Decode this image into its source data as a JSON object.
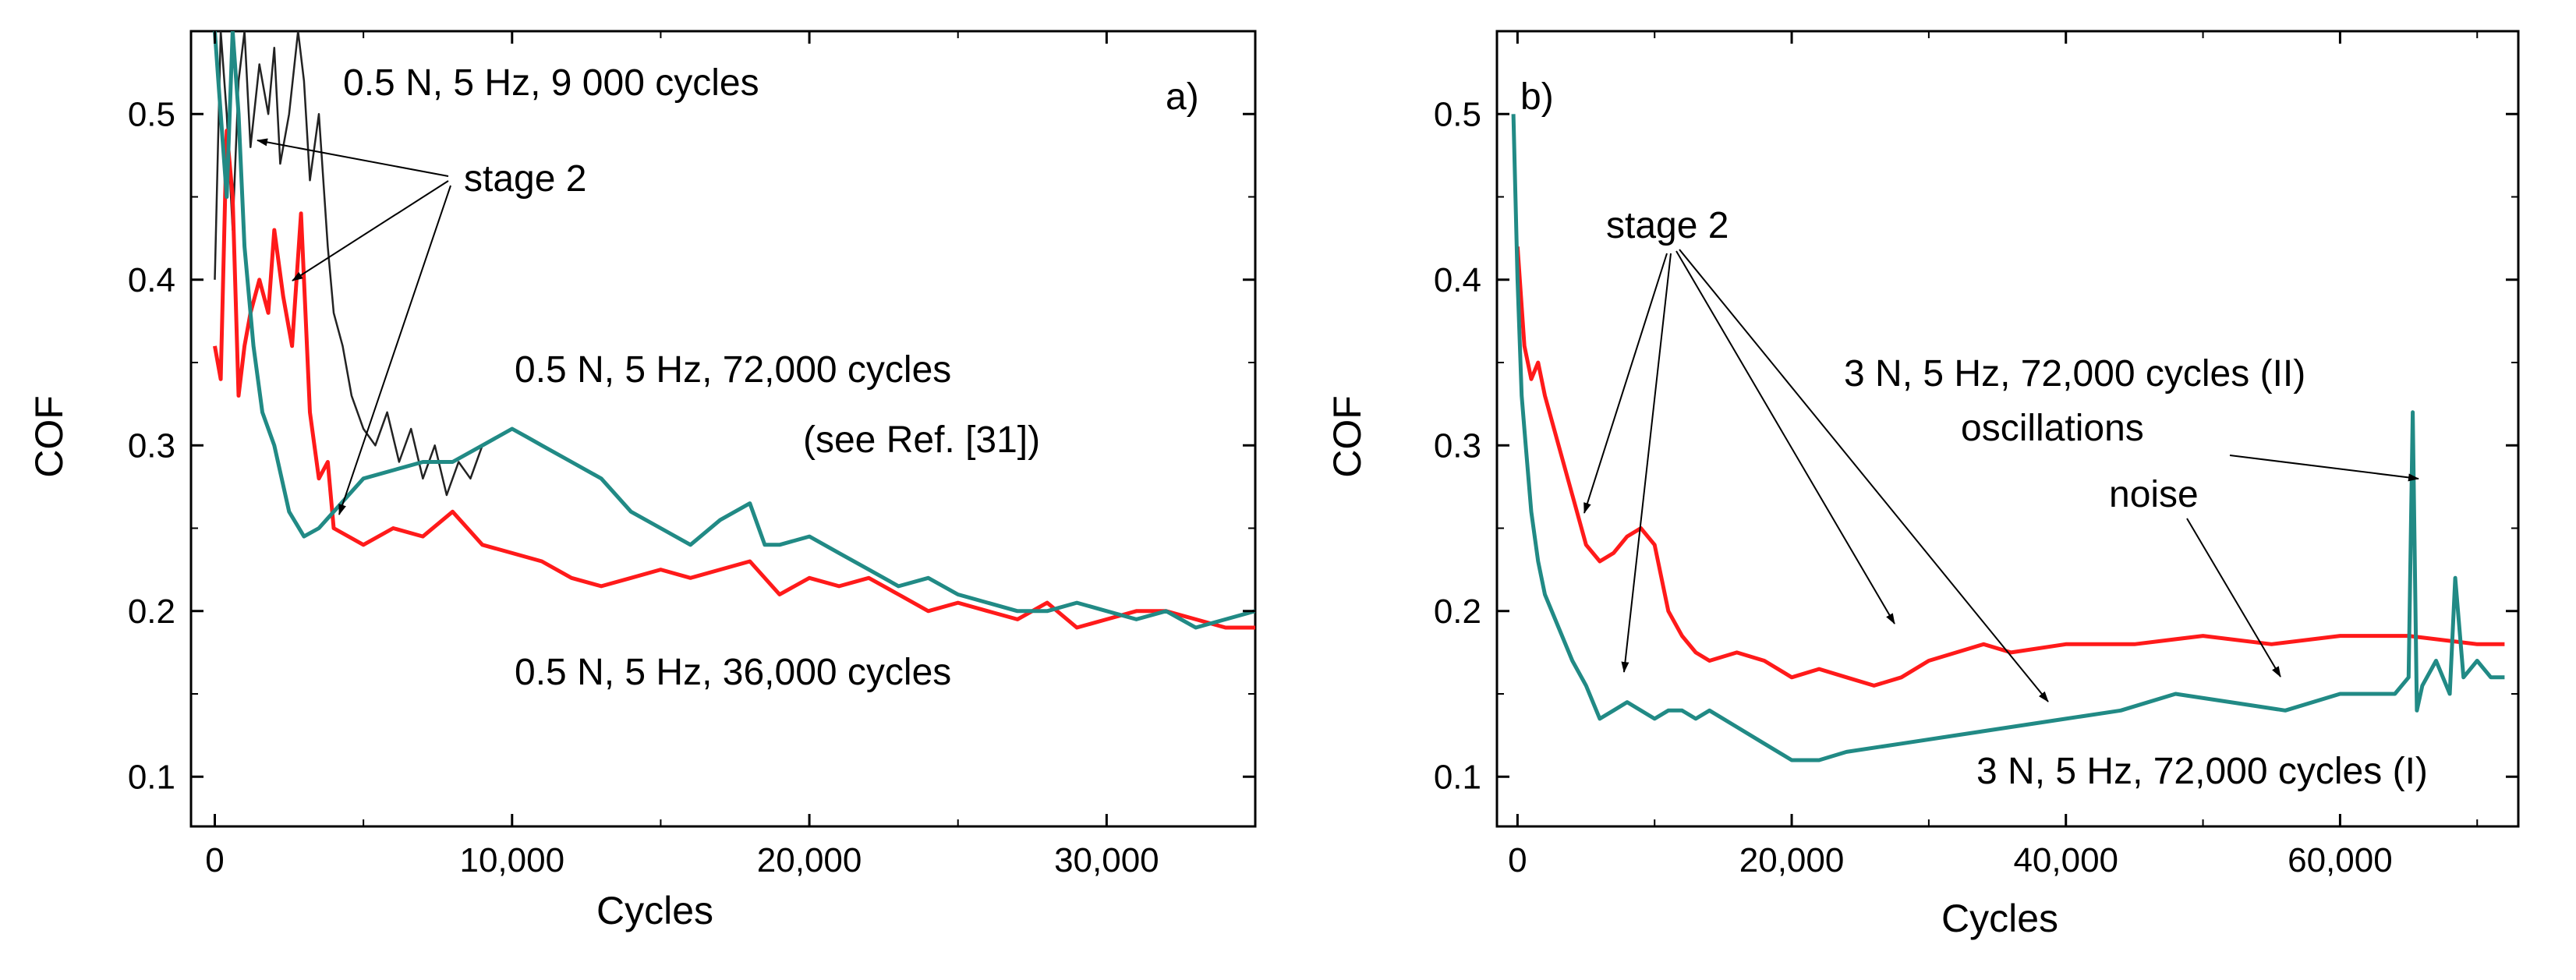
{
  "chart_data": [
    {
      "type": "line",
      "panel_label": "a)",
      "xlabel": "Cycles",
      "ylabel": "COF",
      "xlim": [
        -800,
        35000
      ],
      "ylim": [
        0.07,
        0.55
      ],
      "x_ticks": [
        0,
        10000,
        20000,
        30000
      ],
      "x_tick_labels": [
        "0",
        "10,000",
        "20,000",
        "30,000"
      ],
      "y_ticks": [
        0.1,
        0.2,
        0.3,
        0.4,
        0.5
      ],
      "y_tick_labels": [
        "0.1",
        "0.2",
        "0.3",
        "0.4",
        "0.5"
      ],
      "grid": false,
      "series": [
        {
          "name": "0.5 N, 5 Hz, 9 000 cycles",
          "color": "#222222",
          "x": [
            0,
            200,
            400,
            600,
            800,
            1000,
            1200,
            1500,
            1800,
            2000,
            2200,
            2500,
            2800,
            3000,
            3200,
            3500,
            3800,
            4000,
            4300,
            4600,
            5000,
            5400,
            5800,
            6200,
            6600,
            7000,
            7400,
            7800,
            8200,
            8600,
            9000
          ],
          "y": [
            0.4,
            0.55,
            0.5,
            0.43,
            0.52,
            0.55,
            0.48,
            0.53,
            0.5,
            0.54,
            0.47,
            0.5,
            0.55,
            0.52,
            0.46,
            0.5,
            0.42,
            0.38,
            0.36,
            0.33,
            0.31,
            0.3,
            0.32,
            0.29,
            0.31,
            0.28,
            0.3,
            0.27,
            0.29,
            0.28,
            0.3
          ]
        },
        {
          "name": "0.5 N, 5 Hz, 36,000 cycles",
          "color": "#ff1a1a",
          "x": [
            0,
            200,
            400,
            600,
            800,
            1000,
            1200,
            1500,
            1800,
            2000,
            2300,
            2600,
            2900,
            3200,
            3500,
            3800,
            4000,
            5000,
            6000,
            7000,
            8000,
            9000,
            10000,
            11000,
            12000,
            13000,
            14000,
            15000,
            16000,
            17000,
            18000,
            19000,
            20000,
            21000,
            22000,
            23000,
            24000,
            25000,
            26000,
            27000,
            28000,
            29000,
            30000,
            31000,
            32000,
            33000,
            34000,
            35000
          ],
          "y": [
            0.36,
            0.34,
            0.49,
            0.45,
            0.33,
            0.36,
            0.38,
            0.4,
            0.38,
            0.43,
            0.39,
            0.36,
            0.44,
            0.32,
            0.28,
            0.29,
            0.25,
            0.24,
            0.25,
            0.245,
            0.26,
            0.24,
            0.235,
            0.23,
            0.22,
            0.215,
            0.22,
            0.225,
            0.22,
            0.225,
            0.23,
            0.21,
            0.22,
            0.215,
            0.22,
            0.21,
            0.2,
            0.205,
            0.2,
            0.195,
            0.205,
            0.19,
            0.195,
            0.2,
            0.2,
            0.195,
            0.19,
            0.19
          ]
        },
        {
          "name": "0.5 N, 5 Hz, 72,000 cycles (see Ref. [31])",
          "color": "#218a85",
          "x": [
            0,
            200,
            400,
            600,
            800,
            1000,
            1300,
            1600,
            2000,
            2500,
            3000,
            3500,
            4000,
            5000,
            6000,
            7000,
            8000,
            9000,
            10000,
            10500,
            11000,
            12000,
            13000,
            14000,
            15000,
            16000,
            17000,
            18000,
            18500,
            19000,
            20000,
            21000,
            22000,
            23000,
            24000,
            25000,
            26000,
            27000,
            28000,
            29000,
            30000,
            31000,
            32000,
            33000,
            34000,
            35000
          ],
          "y": [
            0.55,
            0.5,
            0.45,
            0.55,
            0.5,
            0.42,
            0.36,
            0.32,
            0.3,
            0.26,
            0.245,
            0.25,
            0.26,
            0.28,
            0.285,
            0.29,
            0.29,
            0.3,
            0.31,
            0.305,
            0.3,
            0.29,
            0.28,
            0.26,
            0.25,
            0.24,
            0.255,
            0.265,
            0.24,
            0.24,
            0.245,
            0.235,
            0.225,
            0.215,
            0.22,
            0.21,
            0.205,
            0.2,
            0.2,
            0.205,
            0.2,
            0.195,
            0.2,
            0.19,
            0.195,
            0.2
          ]
        }
      ],
      "annotations": [
        {
          "text": "0.5 N, 5 Hz, 9 000 cycles"
        },
        {
          "text": "stage 2"
        },
        {
          "text": "0.5 N, 5 Hz, 72,000 cycles"
        },
        {
          "text": "(see Ref. [31])"
        },
        {
          "text": "0.5 N, 5 Hz, 36,000 cycles"
        }
      ]
    },
    {
      "type": "line",
      "panel_label": "b)",
      "xlabel": "Cycles",
      "ylabel": "COF",
      "xlim": [
        -1500,
        73000
      ],
      "ylim": [
        0.07,
        0.55
      ],
      "x_ticks": [
        0,
        20000,
        40000,
        60000
      ],
      "x_tick_labels": [
        "0",
        "20,000",
        "40,000",
        "60,000"
      ],
      "y_ticks": [
        0.1,
        0.2,
        0.3,
        0.4,
        0.5
      ],
      "y_tick_labels": [
        "0.1",
        "0.2",
        "0.3",
        "0.4",
        "0.5"
      ],
      "grid": false,
      "series": [
        {
          "name": "3 N, 5 Hz, 72,000 cycles (II)",
          "color": "#ff1a1a",
          "x": [
            0,
            500,
            1000,
            1500,
            2000,
            3000,
            4000,
            5000,
            6000,
            7000,
            8000,
            9000,
            10000,
            11000,
            12000,
            13000,
            14000,
            16000,
            18000,
            20000,
            22000,
            24000,
            26000,
            28000,
            30000,
            32000,
            34000,
            36000,
            40000,
            45000,
            50000,
            55000,
            60000,
            65000,
            70000,
            72000
          ],
          "y": [
            0.42,
            0.36,
            0.34,
            0.35,
            0.33,
            0.3,
            0.27,
            0.24,
            0.23,
            0.235,
            0.245,
            0.25,
            0.24,
            0.2,
            0.185,
            0.175,
            0.17,
            0.175,
            0.17,
            0.16,
            0.165,
            0.16,
            0.155,
            0.16,
            0.17,
            0.175,
            0.18,
            0.175,
            0.18,
            0.18,
            0.185,
            0.18,
            0.185,
            0.185,
            0.18,
            0.18
          ]
        },
        {
          "name": "3 N, 5 Hz, 72,000 cycles (I)",
          "color": "#218a85",
          "x": [
            -300,
            0,
            300,
            600,
            1000,
            1500,
            2000,
            3000,
            4000,
            5000,
            6000,
            7000,
            8000,
            9000,
            10000,
            11000,
            12000,
            13000,
            14000,
            16000,
            18000,
            20000,
            22000,
            24000,
            28000,
            32000,
            36000,
            40000,
            44000,
            48000,
            52000,
            56000,
            60000,
            64000,
            65000,
            65300,
            65600,
            66000,
            67000,
            68000,
            68400,
            69000,
            70000,
            71000,
            72000
          ],
          "y": [
            0.5,
            0.4,
            0.33,
            0.3,
            0.26,
            0.23,
            0.21,
            0.19,
            0.17,
            0.155,
            0.135,
            0.14,
            0.145,
            0.14,
            0.135,
            0.14,
            0.14,
            0.135,
            0.14,
            0.13,
            0.12,
            0.11,
            0.11,
            0.115,
            0.12,
            0.125,
            0.13,
            0.135,
            0.14,
            0.15,
            0.145,
            0.14,
            0.15,
            0.15,
            0.16,
            0.32,
            0.14,
            0.155,
            0.17,
            0.15,
            0.22,
            0.16,
            0.17,
            0.16,
            0.16
          ]
        }
      ],
      "annotations": [
        {
          "text": "stage 2"
        },
        {
          "text": "3 N, 5 Hz, 72,000 cycles (II)"
        },
        {
          "text": "oscillations"
        },
        {
          "text": "noise"
        },
        {
          "text": "3 N, 5 Hz, 72,000 cycles (I)"
        }
      ]
    }
  ]
}
